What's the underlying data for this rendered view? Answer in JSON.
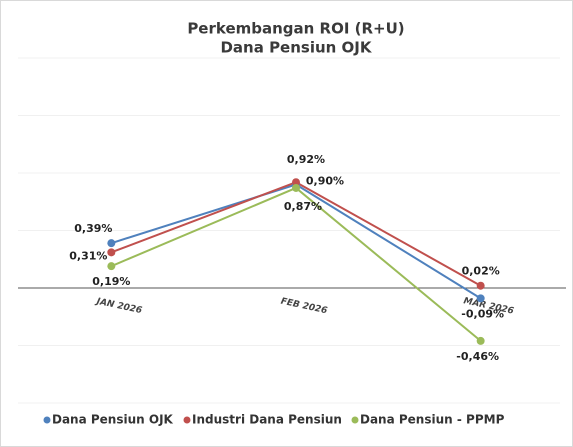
{
  "chart_data": {
    "type": "line",
    "title": "Perkembangan ROI (R+U)",
    "subtitle": "Dana Pensiun OJK",
    "categories": [
      "JAN 2026",
      "FEB 2026",
      "MAR 2026"
    ],
    "series": [
      {
        "name": "Dana Pensiun OJK",
        "color": "#4f81bd",
        "values": [
          0.39,
          0.9,
          -0.09
        ],
        "value_labels": [
          "0,39%",
          "0,90%",
          "-0,09%"
        ]
      },
      {
        "name": "Industri Dana Pensiun",
        "color": "#c0504d",
        "values": [
          0.31,
          0.92,
          0.02
        ],
        "value_labels": [
          "0,31%",
          "0,92%",
          "0,02%"
        ]
      },
      {
        "name": "Dana Pensiun - PPMP",
        "color": "#9bbb59",
        "values": [
          0.19,
          0.87,
          -0.46
        ],
        "value_labels": [
          "0,19%",
          "0,87%",
          "-0,46%"
        ]
      }
    ],
    "ylim": [
      -1,
      2
    ],
    "yticks": [
      -1,
      -0.5,
      0,
      0.5,
      1,
      1.5,
      2
    ],
    "grid": true,
    "legend": "bottom"
  }
}
